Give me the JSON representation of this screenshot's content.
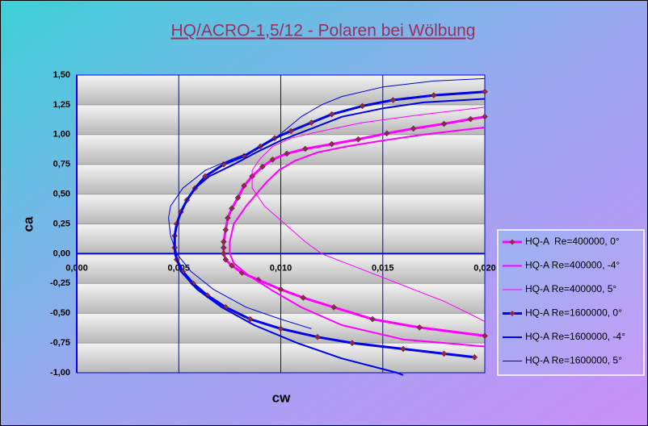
{
  "chart_data": {
    "type": "line",
    "title": "HQ/ACRO-1,5/12 - Polaren bei Wölbung",
    "x_label": "cw",
    "y_label": "ca",
    "xlim": [
      0,
      0.02
    ],
    "ylim": [
      -1,
      1.5
    ],
    "xticks": [
      {
        "value": 0,
        "label": "0,000"
      },
      {
        "value": 0.005,
        "label": "0,005"
      },
      {
        "value": 0.01,
        "label": "0,010"
      },
      {
        "value": 0.015,
        "label": "0,015"
      },
      {
        "value": 0.02,
        "label": "0,020"
      }
    ],
    "yticks": [
      {
        "value": 1.5,
        "label": "1,50"
      },
      {
        "value": 1.25,
        "label": "1,25"
      },
      {
        "value": 1,
        "label": "1,00"
      },
      {
        "value": 0.75,
        "label": "0,75"
      },
      {
        "value": 0.5,
        "label": "0,50"
      },
      {
        "value": 0.25,
        "label": "0,25"
      },
      {
        "value": 0,
        "label": "0,00"
      },
      {
        "value": -0.25,
        "label": "-0,25"
      },
      {
        "value": -0.5,
        "label": "-0,50"
      },
      {
        "value": -0.75,
        "label": "-0,75"
      },
      {
        "value": -1,
        "label": "-1,00"
      }
    ],
    "grid": true,
    "legend": "right",
    "series": [
      {
        "name": "HQ-A  Re=400000, 0°",
        "color": "#ff00ff",
        "width": 3,
        "marker": true,
        "x": [
          0.02,
          0.0168,
          0.0145,
          0.0126,
          0.0111,
          0.01,
          0.0089,
          0.0081,
          0.0076,
          0.0073,
          0.0072,
          0.0072,
          0.0072,
          0.0073,
          0.0074,
          0.0076,
          0.0079,
          0.0082,
          0.0086,
          0.0091,
          0.0096,
          0.0103,
          0.0112,
          0.0125,
          0.0138,
          0.0152,
          0.0165,
          0.018,
          0.0193,
          0.02
        ],
        "values": [
          -0.69,
          -0.62,
          -0.55,
          -0.45,
          -0.37,
          -0.3,
          -0.22,
          -0.16,
          -0.1,
          -0.05,
          0,
          0.05,
          0.1,
          0.2,
          0.3,
          0.38,
          0.47,
          0.57,
          0.65,
          0.73,
          0.79,
          0.84,
          0.88,
          0.92,
          0.96,
          1.01,
          1.05,
          1.09,
          1.13,
          1.15
        ]
      },
      {
        "name": "HQ-A Re=400000, -4°",
        "color": "#ff00ff",
        "width": 2,
        "marker": false,
        "x": [
          0.02,
          0.016,
          0.013,
          0.011,
          0.0095,
          0.0084,
          0.0077,
          0.0075,
          0.0075,
          0.0077,
          0.0083,
          0.0088,
          0.0093,
          0.0099,
          0.0107,
          0.0118,
          0.0132,
          0.015,
          0.017,
          0.02
        ],
        "values": [
          -0.78,
          -0.72,
          -0.6,
          -0.45,
          -0.3,
          -0.18,
          -0.08,
          0,
          0.1,
          0.25,
          0.4,
          0.5,
          0.6,
          0.7,
          0.78,
          0.85,
          0.9,
          0.95,
          1,
          1.06
        ]
      },
      {
        "name": "HQ-A Re=400000, 5°",
        "color": "#ff00ff",
        "width": 1,
        "marker": false,
        "x": [
          0.02,
          0.017,
          0.014,
          0.012,
          0.0105,
          0.0096,
          0.009,
          0.0086,
          0.0086,
          0.0092,
          0.0102,
          0.0112,
          0.012,
          0.0135,
          0.015,
          0.0165,
          0.018,
          0.0192,
          0.02
        ],
        "values": [
          1.23,
          1.17,
          1.1,
          1.03,
          0.97,
          0.9,
          0.8,
          0.7,
          0.55,
          0.4,
          0.25,
          0.1,
          0,
          -0.1,
          -0.2,
          -0.3,
          -0.4,
          -0.5,
          -0.57
        ]
      },
      {
        "name": "HQ-A Re=1600000, 0°",
        "color": "#0000ee",
        "width": 3,
        "marker": true,
        "x": [
          0.02,
          0.0175,
          0.0155,
          0.014,
          0.0125,
          0.0115,
          0.0105,
          0.0097,
          0.009,
          0.0082,
          0.0072,
          0.0063,
          0.0058,
          0.0054,
          0.0051,
          0.0049,
          0.0048,
          0.0048,
          0.0049,
          0.0052,
          0.0057,
          0.0064,
          0.0073,
          0.0085,
          0.01,
          0.0118,
          0.0135,
          0.016,
          0.018,
          0.0195
        ],
        "values": [
          1.36,
          1.33,
          1.29,
          1.24,
          1.17,
          1.1,
          1.03,
          0.97,
          0.9,
          0.82,
          0.75,
          0.65,
          0.55,
          0.45,
          0.35,
          0.25,
          0.15,
          0.05,
          -0.05,
          -0.15,
          -0.25,
          -0.35,
          -0.45,
          -0.55,
          -0.63,
          -0.7,
          -0.75,
          -0.8,
          -0.84,
          -0.87
        ]
      },
      {
        "name": "HQ-A Re=1600000, -4°",
        "color": "#0000ee",
        "width": 2,
        "marker": false,
        "x": [
          0.02,
          0.017,
          0.015,
          0.013,
          0.0115,
          0.01,
          0.0088,
          0.0077,
          0.0065,
          0.0058,
          0.0054,
          0.005,
          0.0048,
          0.0048,
          0.0051,
          0.0059,
          0.0071,
          0.0087,
          0.0108,
          0.013,
          0.0157,
          0.016
        ],
        "values": [
          1.3,
          1.27,
          1.22,
          1.15,
          1.05,
          0.95,
          0.85,
          0.75,
          0.65,
          0.55,
          0.45,
          0.3,
          0.15,
          0,
          -0.15,
          -0.3,
          -0.45,
          -0.6,
          -0.75,
          -0.88,
          -1,
          -1.02
        ]
      },
      {
        "name": "HQ-A Re=1600000, 5°",
        "color": "#0000ee",
        "width": 1,
        "marker": false,
        "x": [
          0.02,
          0.0175,
          0.015,
          0.013,
          0.012,
          0.011,
          0.0103,
          0.0096,
          0.0085,
          0.0077,
          0.0063,
          0.0052,
          0.0046,
          0.0045,
          0.0046,
          0.0049,
          0.0056,
          0.0067,
          0.0083,
          0.01,
          0.0115
        ],
        "values": [
          1.47,
          1.45,
          1.4,
          1.32,
          1.25,
          1.15,
          1.05,
          0.95,
          0.85,
          0.8,
          0.7,
          0.55,
          0.4,
          0.3,
          0.15,
          0,
          -0.15,
          -0.3,
          -0.45,
          -0.55,
          -0.63
        ]
      }
    ]
  }
}
